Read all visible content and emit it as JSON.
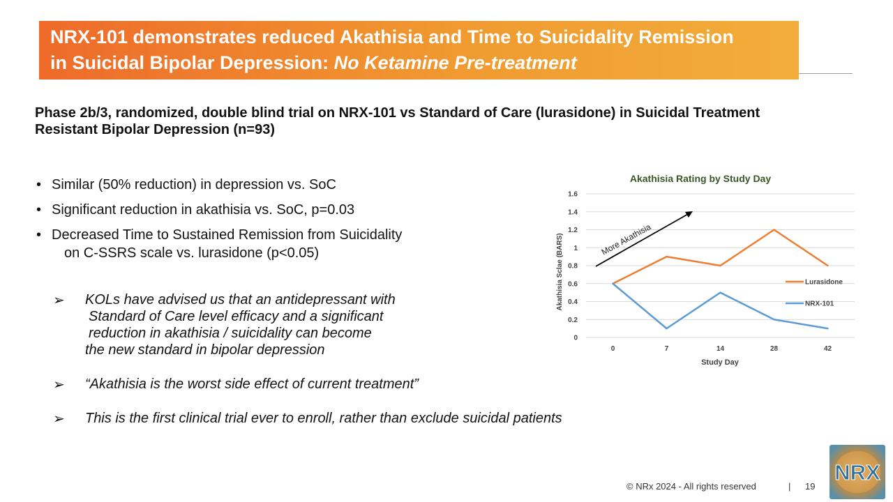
{
  "title": {
    "line1": "NRX-101 demonstrates reduced Akathisia and Time to Suicidality Remission",
    "line2_regular": "in Suicidal Bipolar Depression: ",
    "line2_italic": "No Ketamine Pre-treatment"
  },
  "subtitle": "Phase 2b/3, randomized, double blind trial on NRX-101 vs Standard of Care (lurasidone) in Suicidal Treatment Resistant Bipolar Depression (n=93)",
  "bullets": [
    "Similar (50% reduction) in depression vs. SoC",
    "Significant reduction in akathisia vs. SoC, p=0.03",
    "Decreased Time to Sustained Remission from Suicidality",
    "on C-SSRS scale vs. lurasidone (p<0.05)"
  ],
  "bullet_glyph": "•",
  "arrow_glyph": "➢",
  "kol_points": [
    [
      "KOLs have advised us that an antidepressant with",
      "Standard of Care level efficacy and a significant",
      "reduction in akathisia / suicidality  can become",
      "the new standard in bipolar depression"
    ],
    [
      "“Akathisia is the worst side effect of current treatment”"
    ],
    [
      "This is the first clinical trial ever to enroll, rather than exclude suicidal patients"
    ]
  ],
  "chart_data": {
    "type": "line",
    "title": "Akathisia Rating by Study Day",
    "xlabel": "Study Day",
    "ylabel": "Akathisia Sclae (BARS)",
    "categories": [
      "0",
      "7",
      "14",
      "28",
      "42"
    ],
    "ylim": [
      0,
      1.6
    ],
    "yticks": [
      "0",
      "0.2",
      "0.4",
      "0.6",
      "0.8",
      "1",
      "1.2",
      "1.4",
      "1.6"
    ],
    "grid": true,
    "legend_position": "right",
    "series": [
      {
        "name": "Lurasidone",
        "values": [
          0.6,
          0.9,
          0.8,
          1.2,
          0.8
        ],
        "color": "#ed7d31"
      },
      {
        "name": "NRX-101",
        "values": [
          0.6,
          0.1,
          0.5,
          0.2,
          0.1
        ],
        "color": "#5b9bd5"
      }
    ],
    "annotation": "More Akathisia",
    "title_color": "#375623"
  },
  "footer": {
    "copyright": "© NRx 2024 - All rights reserved",
    "separator": "|",
    "page": "19"
  },
  "logo_text": "NRX"
}
